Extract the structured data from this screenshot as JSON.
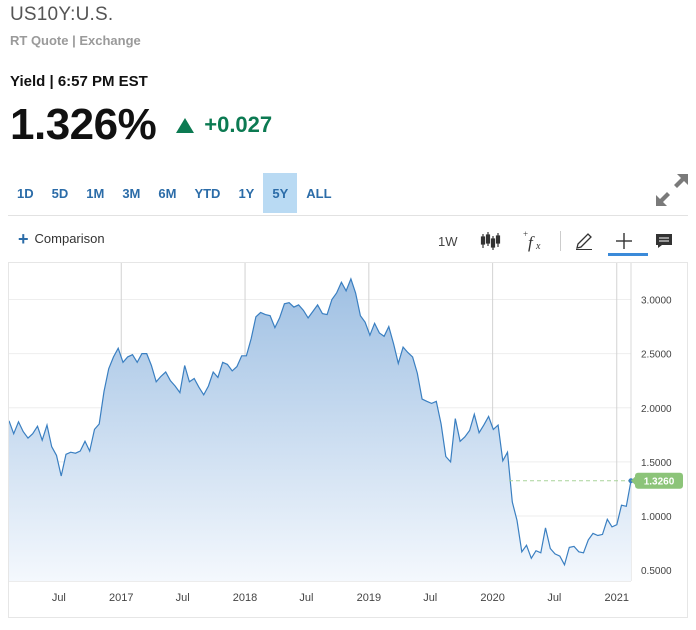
{
  "header": {
    "symbol": "US10Y:U.S.",
    "subtitle": "RT Quote | Exchange",
    "yield_label": "Yield | 6:57 PM EST",
    "price": "1.326%",
    "change": "+0.027"
  },
  "ranges": {
    "items": [
      "1D",
      "5D",
      "1M",
      "3M",
      "6M",
      "YTD",
      "1Y",
      "5Y",
      "ALL"
    ],
    "active": "5Y"
  },
  "toolbar": {
    "comparison_label": "Comparison",
    "interval_label": "1W",
    "icons": [
      "candlestick-icon",
      "fx-icon",
      "pencil-icon",
      "crosshair-icon",
      "comment-icon"
    ]
  },
  "colors": {
    "accent": "#2b6ca8",
    "up": "#0c7a52",
    "line": "#3a7fc1",
    "marker": "#8cc479"
  },
  "chart_data": {
    "type": "area",
    "x_tick_labels": [
      "Jul",
      "2017",
      "Jul",
      "2018",
      "Jul",
      "2019",
      "Jul",
      "2020",
      "Jul",
      "2021"
    ],
    "y_tick_labels": [
      "3.0000",
      "2.5000",
      "2.0000",
      "1.5000",
      "1.0000",
      "0.5000"
    ],
    "ylim": [
      0.4,
      3.3
    ],
    "xlim": [
      "2016-02-05",
      "2021-02-12"
    ],
    "last_value_label": "1.3260",
    "last_value": 1.326,
    "grid": true,
    "series": [
      {
        "x": [
          "2016-02-05",
          "2016-02-19",
          "2016-03-04",
          "2016-03-18",
          "2016-04-01",
          "2016-04-15",
          "2016-04-29",
          "2016-05-13",
          "2016-05-27",
          "2016-06-10",
          "2016-06-24",
          "2016-07-08",
          "2016-07-22",
          "2016-08-05",
          "2016-08-19",
          "2016-09-02",
          "2016-09-16",
          "2016-09-30",
          "2016-10-14",
          "2016-10-28",
          "2016-11-11",
          "2016-11-25",
          "2016-12-09",
          "2016-12-23",
          "2017-01-06",
          "2017-01-20",
          "2017-02-03",
          "2017-02-17",
          "2017-03-03",
          "2017-03-17",
          "2017-03-31",
          "2017-04-14",
          "2017-04-28",
          "2017-05-12",
          "2017-05-26",
          "2017-06-09",
          "2017-06-23",
          "2017-07-07",
          "2017-07-21",
          "2017-08-04",
          "2017-08-18",
          "2017-09-01",
          "2017-09-15",
          "2017-09-29",
          "2017-10-13",
          "2017-10-27",
          "2017-11-10",
          "2017-11-24",
          "2017-12-08",
          "2017-12-22",
          "2018-01-05",
          "2018-01-19",
          "2018-02-02",
          "2018-02-16",
          "2018-03-02",
          "2018-03-16",
          "2018-03-30",
          "2018-04-13",
          "2018-04-27",
          "2018-05-11",
          "2018-05-25",
          "2018-06-08",
          "2018-06-22",
          "2018-07-06",
          "2018-07-20",
          "2018-08-03",
          "2018-08-17",
          "2018-08-31",
          "2018-09-14",
          "2018-09-28",
          "2018-10-12",
          "2018-10-26",
          "2018-11-09",
          "2018-11-23",
          "2018-12-07",
          "2018-12-21",
          "2019-01-04",
          "2019-01-18",
          "2019-02-01",
          "2019-02-15",
          "2019-03-01",
          "2019-03-15",
          "2019-03-29",
          "2019-04-12",
          "2019-04-26",
          "2019-05-10",
          "2019-05-24",
          "2019-06-07",
          "2019-06-21",
          "2019-07-05",
          "2019-07-19",
          "2019-08-02",
          "2019-08-16",
          "2019-08-30",
          "2019-09-13",
          "2019-09-27",
          "2019-10-11",
          "2019-10-25",
          "2019-11-08",
          "2019-11-22",
          "2019-12-06",
          "2019-12-20",
          "2020-01-03",
          "2020-01-17",
          "2020-01-31",
          "2020-02-14",
          "2020-02-28",
          "2020-03-13",
          "2020-03-27",
          "2020-04-10",
          "2020-04-24",
          "2020-05-08",
          "2020-05-22",
          "2020-06-05",
          "2020-06-19",
          "2020-07-03",
          "2020-07-17",
          "2020-07-31",
          "2020-08-14",
          "2020-08-28",
          "2020-09-11",
          "2020-09-25",
          "2020-10-09",
          "2020-10-23",
          "2020-11-06",
          "2020-11-20",
          "2020-12-04",
          "2020-12-18",
          "2021-01-01",
          "2021-01-15",
          "2021-01-29",
          "2021-02-12"
        ],
        "values": [
          1.88,
          1.76,
          1.87,
          1.78,
          1.72,
          1.76,
          1.83,
          1.7,
          1.84,
          1.64,
          1.56,
          1.37,
          1.57,
          1.59,
          1.58,
          1.6,
          1.69,
          1.6,
          1.8,
          1.85,
          2.15,
          2.36,
          2.47,
          2.55,
          2.42,
          2.47,
          2.49,
          2.42,
          2.5,
          2.5,
          2.39,
          2.24,
          2.29,
          2.33,
          2.25,
          2.2,
          2.14,
          2.39,
          2.24,
          2.27,
          2.19,
          2.12,
          2.2,
          2.33,
          2.28,
          2.42,
          2.4,
          2.34,
          2.38,
          2.48,
          2.48,
          2.64,
          2.84,
          2.88,
          2.86,
          2.85,
          2.74,
          2.83,
          2.96,
          2.97,
          2.93,
          2.95,
          2.9,
          2.83,
          2.89,
          2.95,
          2.87,
          2.86,
          3.0,
          3.06,
          3.16,
          3.08,
          3.19,
          3.06,
          2.85,
          2.79,
          2.67,
          2.78,
          2.69,
          2.66,
          2.75,
          2.59,
          2.41,
          2.56,
          2.51,
          2.47,
          2.32,
          2.08,
          2.06,
          2.04,
          2.06,
          1.85,
          1.55,
          1.5,
          1.9,
          1.69,
          1.73,
          1.79,
          1.94,
          1.77,
          1.84,
          1.92,
          1.8,
          1.84,
          1.51,
          1.59,
          1.13,
          0.96,
          0.67,
          0.73,
          0.61,
          0.68,
          0.66,
          0.89,
          0.7,
          0.65,
          0.63,
          0.55,
          0.71,
          0.72,
          0.67,
          0.66,
          0.78,
          0.84,
          0.82,
          0.83,
          0.97,
          0.9,
          0.92,
          1.1,
          1.09,
          1.326
        ]
      }
    ]
  }
}
